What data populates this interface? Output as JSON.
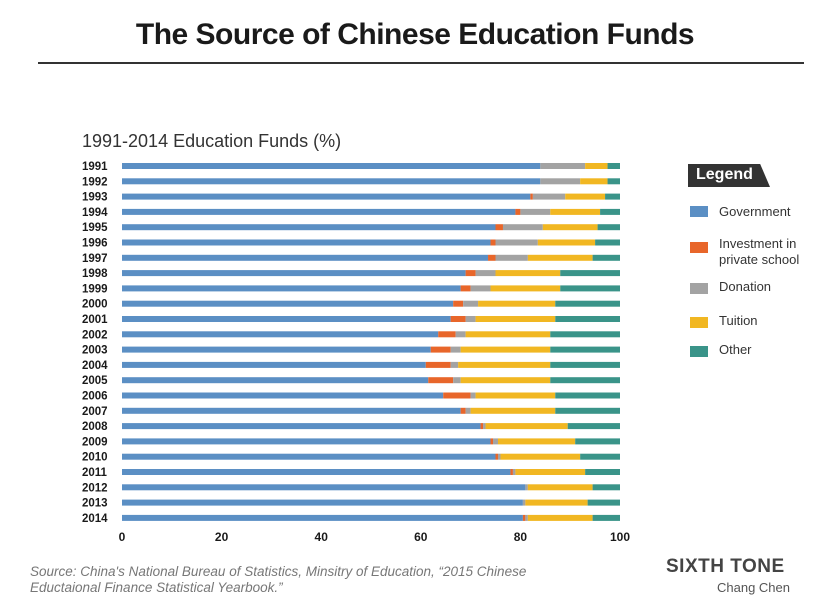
{
  "header": {
    "title": "The Source of Chinese Education Funds"
  },
  "chart_data": {
    "type": "bar",
    "orientation": "horizontal",
    "stacked": true,
    "title": "1991-2014 Education Funds (%)",
    "xlim": [
      0,
      100
    ],
    "xticks": [
      0,
      20,
      40,
      60,
      80,
      100
    ],
    "categories": [
      "1991",
      "1992",
      "1993",
      "1994",
      "1995",
      "1996",
      "1997",
      "1998",
      "1999",
      "2000",
      "2001",
      "2002",
      "2003",
      "2004",
      "2005",
      "2006",
      "2007",
      "2008",
      "2009",
      "2010",
      "2011",
      "2012",
      "2013",
      "2014"
    ],
    "series": [
      {
        "name": "Government",
        "color": "#5b8fc4",
        "values": [
          84,
          84,
          82,
          79,
          75,
          74,
          73.5,
          69,
          68,
          66.5,
          66,
          63.5,
          62,
          61,
          61.5,
          64.5,
          68,
          72,
          74,
          75,
          78,
          81,
          80.5,
          80.5
        ]
      },
      {
        "name": "Investment in private school",
        "color": "#e8662a",
        "values": [
          0,
          0,
          0.5,
          1,
          1.5,
          1,
          1.5,
          2,
          2,
          2,
          3,
          3.5,
          4,
          5,
          5,
          5.5,
          1,
          0.5,
          0.5,
          0.5,
          0.5,
          0,
          0,
          0.5
        ]
      },
      {
        "name": "Donation",
        "color": "#a3a3a3",
        "values": [
          9,
          8,
          6.5,
          6,
          8,
          8.5,
          6.5,
          4,
          4,
          3,
          2,
          2,
          2,
          1.5,
          1.5,
          1,
          1,
          0.5,
          1,
          0.5,
          0.5,
          0.5,
          0.5,
          0.5
        ]
      },
      {
        "name": "Tuition",
        "color": "#f1b722",
        "values": [
          4.5,
          5.5,
          8,
          10,
          11,
          11.5,
          13,
          13,
          14,
          15.5,
          16,
          17,
          18,
          18.5,
          18,
          16,
          17,
          16.5,
          15.5,
          16,
          14,
          13,
          12.5,
          13
        ]
      },
      {
        "name": "Other",
        "color": "#3a9489",
        "values": [
          2.5,
          2.5,
          3,
          4,
          4.5,
          5,
          5.5,
          12,
          12,
          13,
          13,
          14,
          14,
          14,
          14,
          13,
          13,
          10.5,
          9,
          8,
          7,
          5.5,
          6.5,
          5.5
        ]
      }
    ],
    "legend": {
      "title": "Legend",
      "position": "right"
    },
    "grid": false
  },
  "footer": {
    "source": "Source: China's National Bureau of Statistics, Minsitry of Education, “2015 Chinese Eductaional Finance Statistical Yearbook.”",
    "brand": "SIXTH TONE",
    "author": "Chang Chen"
  }
}
